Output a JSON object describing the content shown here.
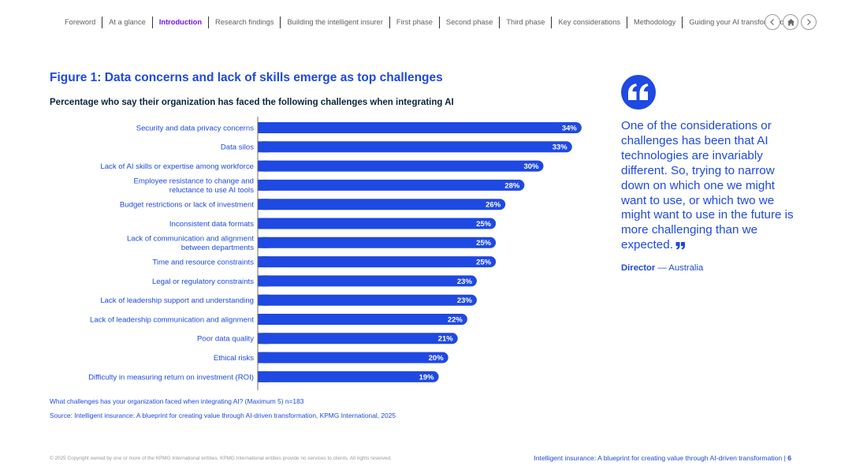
{
  "nav": {
    "items": [
      "Foreword",
      "At a glance",
      "Introduction",
      "Research findings",
      "Building the intelligent insurer",
      "First phase",
      "Second phase",
      "Third phase",
      "Key considerations",
      "Methodology",
      "Guiding your AI transformation"
    ],
    "active_index": 2,
    "active_color": "#7213ea",
    "controls": [
      "chevron-left-icon",
      "home-icon",
      "chevron-right-icon"
    ]
  },
  "figure": {
    "title": "Figure 1: Data concerns and lack of skills emerge as top challenges",
    "subtitle": "Percentage who say their organization has faced the following challenges when integrating AI"
  },
  "chart_data": {
    "type": "bar",
    "orientation": "horizontal",
    "categories": [
      [
        "Security and data privacy concerns"
      ],
      [
        "Data silos"
      ],
      [
        "Lack of AI skills or expertise among workforce"
      ],
      [
        "Employee resistance to change and",
        "reluctance to use AI tools"
      ],
      [
        "Budget restrictions or lack of investment"
      ],
      [
        "Inconsistent data formats"
      ],
      [
        "Lack of communication and alignment",
        "between departments"
      ],
      [
        "Time and resource constraints"
      ],
      [
        "Legal or regulatory constraints"
      ],
      [
        "Lack of leadership support and understanding"
      ],
      [
        "Lack of leadership communication and alignment"
      ],
      [
        "Poor data quality"
      ],
      [
        "Ethical risks"
      ],
      [
        "Difficulty in measuring return on investment (ROI)"
      ]
    ],
    "values": [
      34,
      33,
      30,
      28,
      26,
      25,
      25,
      25,
      23,
      23,
      22,
      21,
      20,
      19
    ],
    "value_suffix": "%",
    "bar_color": "#1e49e2",
    "xlim": [
      0,
      36
    ],
    "grid": false
  },
  "notes": {
    "question": "What challenges has your organization faced when integrating AI? (Maximum 5) n=183",
    "source": "Source: Intelligent insurance: A blueprint for creating value through AI-driven transformation, KPMG International, 2025"
  },
  "quote": {
    "icon": "open-quote-icon",
    "text": "One of the considerations or challenges has been that AI technologies are invariably different. So, trying to narrow down on which one we might want to use, or which two we might want to use in the future is more challenging than we expected.",
    "close_icon": "close-quote-icon",
    "attribution_role": "Director",
    "attribution_sep": " — ",
    "attribution_country": "Australia"
  },
  "footer": {
    "copyright": "© 2025 Copyright owned by one or more of the KPMG International entities. KPMG International entities provide no services to clients. All rights reserved.",
    "publication": "Intelligent insurance: A blueprint for creating value through AI-driven transformation",
    "separator": " | ",
    "page_number": "6"
  }
}
